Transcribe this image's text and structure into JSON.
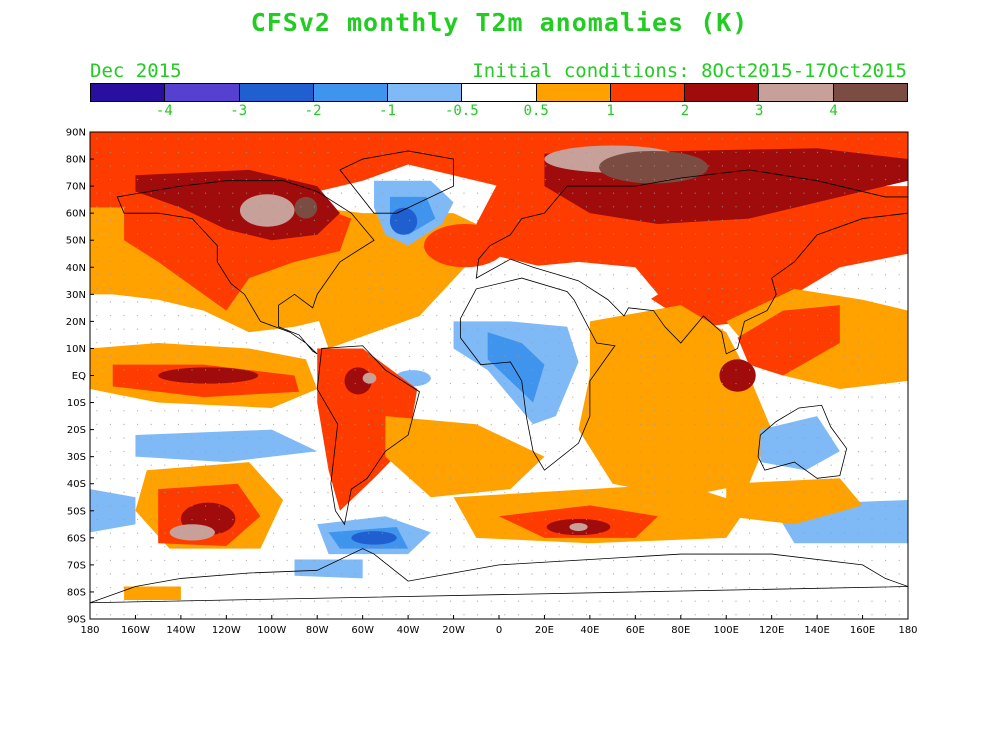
{
  "title": "CFSv2 monthly T2m anomalies (K)",
  "valid_month": "Dec 2015",
  "initial_conditions": "Initial conditions: 8Oct2015-17Oct2015",
  "colorbar": {
    "colors": [
      "#2a0ea0",
      "#5540d0",
      "#1f5fd0",
      "#3f94ee",
      "#7fbaf6",
      "#ffffff",
      "#ffa200",
      "#ff3c00",
      "#a00c0c",
      "#c8a09a",
      "#7a4c42"
    ],
    "labels": [
      "-4",
      "-3",
      "-2",
      "-1",
      "-0.5",
      "0.5",
      "1",
      "2",
      "3",
      "4"
    ]
  },
  "map": {
    "lat_labels": [
      "90N",
      "80N",
      "70N",
      "60N",
      "50N",
      "40N",
      "30N",
      "20N",
      "10N",
      "EQ",
      "10S",
      "20S",
      "30S",
      "40S",
      "50S",
      "60S",
      "70S",
      "80S",
      "90S"
    ],
    "lon_labels": [
      "180",
      "160W",
      "140W",
      "120W",
      "100W",
      "80W",
      "60W",
      "40W",
      "20W",
      "0",
      "20E",
      "40E",
      "60E",
      "80E",
      "100E",
      "120E",
      "140E",
      "160E",
      "180"
    ],
    "colors": {
      "white": "#ffffff",
      "orange": "#ffa200",
      "red": "#ff3c00",
      "darkred": "#a00c0c",
      "pink": "#c8a09a",
      "brown": "#7a4c42",
      "lightblue": "#7fbaf6",
      "blue": "#3f94ee",
      "midblue": "#1f5fd0",
      "purple": "#5540d0"
    }
  }
}
